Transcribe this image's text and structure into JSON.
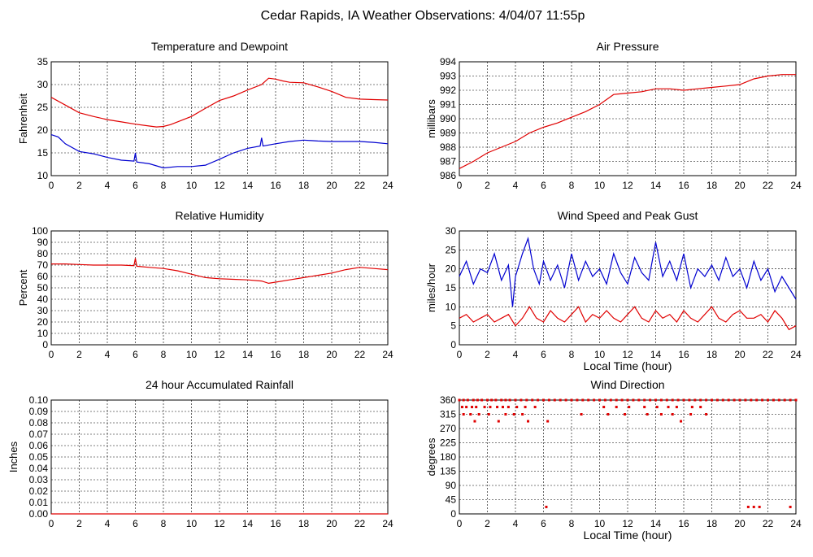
{
  "page_title": "Cedar Rapids, IA Weather Observations: 4/04/07 11:55p",
  "colors": {
    "red": "#e00000",
    "blue": "#0000d0",
    "grid": "#000000"
  },
  "chart_data": [
    {
      "id": "temp",
      "type": "line",
      "title": "Temperature and Dewpoint",
      "ylabel": "Fahrenheit",
      "xlabel": "",
      "xlim": [
        0,
        24
      ],
      "ylim": [
        10,
        35
      ],
      "xticks": [
        "0",
        "2",
        "4",
        "6",
        "8",
        "10",
        "12",
        "14",
        "16",
        "18",
        "20",
        "22",
        "24"
      ],
      "yticks": [
        "10",
        "15",
        "20",
        "25",
        "30",
        "35"
      ],
      "grid": true,
      "series": [
        {
          "color": "red",
          "x": [
            0,
            1,
            2,
            3,
            4,
            5,
            6,
            7,
            7.5,
            8,
            8.5,
            9,
            10,
            11,
            12,
            13,
            14,
            15,
            15.5,
            16,
            16.5,
            17,
            18,
            19,
            20,
            21,
            22,
            23,
            24
          ],
          "y": [
            27.2,
            25.5,
            23.8,
            23,
            22.3,
            21.8,
            21.3,
            20.9,
            20.7,
            20.8,
            21.2,
            21.8,
            23,
            24.8,
            26.5,
            27.5,
            28.8,
            30,
            31.4,
            31.2,
            30.8,
            30.5,
            30.4,
            29.5,
            28.5,
            27.2,
            26.8,
            26.7,
            26.6
          ]
        },
        {
          "color": "blue",
          "x": [
            0,
            0.5,
            1,
            2,
            3,
            4,
            5,
            5.9,
            6,
            6.1,
            7,
            8,
            9,
            10,
            11,
            12,
            13,
            14,
            14.9,
            15,
            15.1,
            16,
            17,
            18,
            19,
            20,
            21,
            22,
            23,
            24
          ],
          "y": [
            19,
            18.5,
            17,
            15.3,
            14.8,
            14,
            13.4,
            13.2,
            15,
            13,
            12.6,
            11.7,
            12,
            12,
            12.3,
            13.6,
            15,
            16,
            16.5,
            18.3,
            16.5,
            17,
            17.5,
            17.8,
            17.6,
            17.5,
            17.5,
            17.5,
            17.3,
            17
          ]
        }
      ]
    },
    {
      "id": "pressure",
      "type": "line",
      "title": "Air Pressure",
      "ylabel": "millibars",
      "xlabel": "",
      "xlim": [
        0,
        24
      ],
      "ylim": [
        986,
        994
      ],
      "xticks": [
        "0",
        "2",
        "4",
        "6",
        "8",
        "10",
        "12",
        "14",
        "16",
        "18",
        "20",
        "22",
        "24"
      ],
      "yticks": [
        "986",
        "987",
        "988",
        "989",
        "990",
        "991",
        "992",
        "993",
        "994"
      ],
      "grid": true,
      "series": [
        {
          "color": "red",
          "x": [
            0,
            1,
            2,
            3,
            4,
            5,
            6,
            7,
            8,
            9,
            10,
            11,
            12,
            13,
            14,
            15,
            16,
            17,
            18,
            19,
            20,
            21,
            22,
            23,
            24
          ],
          "y": [
            986.5,
            987,
            987.6,
            988,
            988.4,
            989,
            989.4,
            989.7,
            990.1,
            990.5,
            991,
            991.7,
            991.8,
            991.9,
            992.1,
            992.1,
            992.0,
            992.1,
            992.2,
            992.3,
            992.4,
            992.8,
            993.0,
            993.1,
            993.1
          ]
        }
      ]
    },
    {
      "id": "humidity",
      "type": "line",
      "title": "Relative Humidity",
      "ylabel": "Percent",
      "xlabel": "",
      "xlim": [
        0,
        24
      ],
      "ylim": [
        0,
        100
      ],
      "xticks": [
        "0",
        "2",
        "4",
        "6",
        "8",
        "10",
        "12",
        "14",
        "16",
        "18",
        "20",
        "22",
        "24"
      ],
      "yticks": [
        "0",
        "10",
        "20",
        "30",
        "40",
        "50",
        "60",
        "70",
        "80",
        "90",
        "100"
      ],
      "grid": true,
      "series": [
        {
          "color": "red",
          "x": [
            0,
            1,
            2,
            3,
            4,
            5,
            5.9,
            6,
            6.1,
            7,
            8,
            9,
            10,
            11,
            12,
            13,
            14,
            15,
            15.5,
            16,
            17,
            18,
            19,
            20,
            21,
            22,
            23,
            24
          ],
          "y": [
            71,
            71,
            70.5,
            70,
            70,
            70,
            69.5,
            76,
            69,
            68,
            67,
            65,
            62,
            59,
            58,
            57.5,
            57,
            56,
            54,
            55,
            57,
            59,
            61,
            63,
            66,
            68,
            67,
            66
          ]
        }
      ]
    },
    {
      "id": "wind",
      "type": "line",
      "title": "Wind Speed and Peak Gust",
      "ylabel": "miles/hour",
      "xlabel": "Local Time (hour)",
      "xlim": [
        0,
        24
      ],
      "ylim": [
        0,
        30
      ],
      "xticks": [
        "0",
        "2",
        "4",
        "6",
        "8",
        "10",
        "12",
        "14",
        "16",
        "18",
        "20",
        "22",
        "24"
      ],
      "yticks": [
        "0",
        "5",
        "10",
        "15",
        "20",
        "25",
        "30"
      ],
      "grid": true,
      "series": [
        {
          "color": "blue",
          "x": [
            0,
            0.5,
            1,
            1.5,
            2,
            2.5,
            3,
            3.5,
            3.8,
            4,
            4.5,
            4.9,
            5.3,
            5.7,
            6,
            6.5,
            7,
            7.5,
            8,
            8.5,
            9,
            9.5,
            10,
            10.5,
            11,
            11.5,
            12,
            12.5,
            13,
            13.5,
            14,
            14.5,
            15,
            15.5,
            16,
            16.5,
            17,
            17.5,
            18,
            18.5,
            19,
            19.5,
            20,
            20.5,
            21,
            21.5,
            22,
            22.5,
            23,
            23.5,
            24
          ],
          "y": [
            18,
            22,
            16,
            20,
            19,
            24,
            17,
            21,
            10,
            18,
            24,
            28,
            20,
            16,
            22,
            17,
            21,
            15,
            24,
            17,
            22,
            18,
            20,
            16,
            24,
            19,
            16,
            23,
            19,
            17,
            27,
            18,
            22,
            17,
            24,
            15,
            20,
            18,
            21,
            17,
            23,
            18,
            20,
            15,
            22,
            17,
            20,
            14,
            18,
            15,
            12
          ]
        },
        {
          "color": "red",
          "x": [
            0,
            0.5,
            1,
            1.5,
            2,
            2.5,
            3,
            3.5,
            4,
            4.5,
            5,
            5.5,
            6,
            6.5,
            7,
            7.5,
            8,
            8.5,
            9,
            9.5,
            10,
            10.5,
            11,
            11.5,
            12,
            12.5,
            13,
            13.5,
            14,
            14.5,
            15,
            15.5,
            16,
            16.5,
            17,
            17.5,
            18,
            18.5,
            19,
            19.5,
            20,
            20.5,
            21,
            21.5,
            22,
            22.5,
            23,
            23.5,
            24
          ],
          "y": [
            7,
            8,
            6,
            7,
            8,
            6,
            7,
            8,
            5,
            7,
            10,
            7,
            6,
            9,
            7,
            6,
            8,
            10,
            6,
            8,
            7,
            9,
            7,
            6,
            8,
            10,
            7,
            6,
            9,
            7,
            8,
            6,
            9,
            7,
            6,
            8,
            10,
            7,
            6,
            8,
            9,
            7,
            7,
            8,
            6,
            9,
            7,
            4,
            5
          ]
        }
      ]
    },
    {
      "id": "rain",
      "type": "line",
      "title": "24 hour Accumulated Rainfall",
      "ylabel": "Inches",
      "xlabel": "",
      "xlim": [
        0,
        24
      ],
      "ylim": [
        0,
        0.1
      ],
      "xticks": [
        "0",
        "2",
        "4",
        "6",
        "8",
        "10",
        "12",
        "14",
        "16",
        "18",
        "20",
        "22",
        "24"
      ],
      "yticks": [
        "0.00",
        "0.01",
        "0.02",
        "0.03",
        "0.04",
        "0.05",
        "0.06",
        "0.07",
        "0.08",
        "0.09",
        "0.10"
      ],
      "grid": true,
      "series": [
        {
          "color": "red",
          "x": [
            0,
            24
          ],
          "y": [
            0,
            0
          ]
        }
      ]
    },
    {
      "id": "direction",
      "type": "scatter",
      "title": "Wind Direction",
      "ylabel": "degrees",
      "xlabel": "Local Time (hour)",
      "xlim": [
        0,
        24
      ],
      "ylim": [
        0,
        360
      ],
      "xticks": [
        "0",
        "2",
        "4",
        "6",
        "8",
        "10",
        "12",
        "14",
        "16",
        "18",
        "20",
        "22",
        "24"
      ],
      "yticks": [
        "0",
        "45",
        "90",
        "135",
        "180",
        "225",
        "270",
        "315",
        "360"
      ],
      "grid": true,
      "series": [
        {
          "color": "red",
          "x": [
            0,
            0.3,
            0.6,
            1,
            1.3,
            1.6,
            2,
            2.3,
            2.6,
            3,
            3.3,
            3.6,
            4,
            4.4,
            4.8,
            5.2,
            5.6,
            6,
            6.4,
            6.8,
            7.2,
            7.6,
            8,
            8.4,
            8.8,
            9.2,
            9.6,
            10,
            10.4,
            10.8,
            11.2,
            11.6,
            12,
            12.4,
            12.8,
            13.2,
            13.6,
            14,
            14.4,
            14.8,
            15.2,
            15.6,
            16,
            16.4,
            16.8,
            17.2,
            17.6,
            18,
            18.4,
            18.8,
            19.2,
            19.6,
            20,
            20.4,
            20.8,
            21.2,
            21.6,
            22,
            22.4,
            22.8,
            23.2,
            23.6,
            24,
            0.2,
            0.5,
            0.9,
            1.2,
            1.8,
            2.2,
            2.7,
            3.1,
            3.5,
            4.1,
            4.7,
            5.4,
            10.3,
            11.2,
            12.1,
            13.2,
            14.1,
            14.9,
            15.5,
            16.6,
            17.2,
            0.3,
            0.8,
            1.4,
            2.1,
            3.3,
            3.9,
            4.5,
            8.7,
            10.6,
            11.8,
            13.4,
            14.4,
            15.2,
            16.5,
            17.6,
            1.1,
            2.8,
            4.9,
            6.3,
            15.8,
            6.2,
            20.6,
            21.0,
            21.4,
            23.6
          ],
          "y": [
            360,
            360,
            360,
            360,
            360,
            360,
            360,
            360,
            360,
            360,
            360,
            360,
            360,
            360,
            360,
            360,
            360,
            360,
            360,
            360,
            360,
            360,
            360,
            360,
            360,
            360,
            360,
            360,
            360,
            360,
            360,
            360,
            360,
            360,
            360,
            360,
            360,
            360,
            360,
            360,
            360,
            360,
            360,
            360,
            360,
            360,
            360,
            360,
            360,
            360,
            360,
            360,
            360,
            360,
            360,
            360,
            360,
            360,
            360,
            360,
            360,
            360,
            360,
            338,
            338,
            338,
            338,
            338,
            338,
            338,
            338,
            338,
            338,
            338,
            338,
            338,
            338,
            338,
            338,
            338,
            338,
            338,
            338,
            338,
            315,
            315,
            315,
            315,
            315,
            315,
            315,
            315,
            315,
            315,
            315,
            315,
            315,
            315,
            315,
            293,
            293,
            293,
            293,
            293,
            22,
            22,
            22,
            22,
            22
          ]
        }
      ]
    }
  ]
}
